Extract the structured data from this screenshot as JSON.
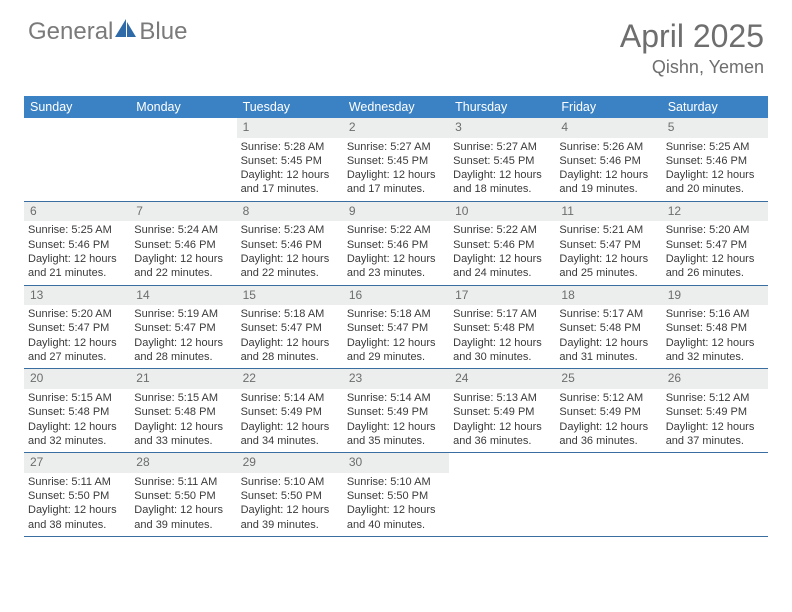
{
  "logo": {
    "textLeft": "General",
    "textRight": "Blue"
  },
  "title": {
    "month": "April 2025",
    "location": "Qishn, Yemen"
  },
  "colors": {
    "header_bg": "#3b82c4",
    "header_text": "#ffffff",
    "daynum_bg": "#eceded",
    "daynum_text": "#6d6d6d",
    "body_text": "#3a3a3a",
    "row_border": "#3b6ea0",
    "logo_text": "#7a7a7a",
    "logo_sail": "#2f6aa8",
    "title_text": "#6e6e6e"
  },
  "dow": [
    "Sunday",
    "Monday",
    "Tuesday",
    "Wednesday",
    "Thursday",
    "Friday",
    "Saturday"
  ],
  "weeks": [
    [
      null,
      null,
      {
        "n": "1",
        "sr": "5:28 AM",
        "ss": "5:45 PM",
        "dl": "12 hours and 17 minutes."
      },
      {
        "n": "2",
        "sr": "5:27 AM",
        "ss": "5:45 PM",
        "dl": "12 hours and 17 minutes."
      },
      {
        "n": "3",
        "sr": "5:27 AM",
        "ss": "5:45 PM",
        "dl": "12 hours and 18 minutes."
      },
      {
        "n": "4",
        "sr": "5:26 AM",
        "ss": "5:46 PM",
        "dl": "12 hours and 19 minutes."
      },
      {
        "n": "5",
        "sr": "5:25 AM",
        "ss": "5:46 PM",
        "dl": "12 hours and 20 minutes."
      }
    ],
    [
      {
        "n": "6",
        "sr": "5:25 AM",
        "ss": "5:46 PM",
        "dl": "12 hours and 21 minutes."
      },
      {
        "n": "7",
        "sr": "5:24 AM",
        "ss": "5:46 PM",
        "dl": "12 hours and 22 minutes."
      },
      {
        "n": "8",
        "sr": "5:23 AM",
        "ss": "5:46 PM",
        "dl": "12 hours and 22 minutes."
      },
      {
        "n": "9",
        "sr": "5:22 AM",
        "ss": "5:46 PM",
        "dl": "12 hours and 23 minutes."
      },
      {
        "n": "10",
        "sr": "5:22 AM",
        "ss": "5:46 PM",
        "dl": "12 hours and 24 minutes."
      },
      {
        "n": "11",
        "sr": "5:21 AM",
        "ss": "5:47 PM",
        "dl": "12 hours and 25 minutes."
      },
      {
        "n": "12",
        "sr": "5:20 AM",
        "ss": "5:47 PM",
        "dl": "12 hours and 26 minutes."
      }
    ],
    [
      {
        "n": "13",
        "sr": "5:20 AM",
        "ss": "5:47 PM",
        "dl": "12 hours and 27 minutes."
      },
      {
        "n": "14",
        "sr": "5:19 AM",
        "ss": "5:47 PM",
        "dl": "12 hours and 28 minutes."
      },
      {
        "n": "15",
        "sr": "5:18 AM",
        "ss": "5:47 PM",
        "dl": "12 hours and 28 minutes."
      },
      {
        "n": "16",
        "sr": "5:18 AM",
        "ss": "5:47 PM",
        "dl": "12 hours and 29 minutes."
      },
      {
        "n": "17",
        "sr": "5:17 AM",
        "ss": "5:48 PM",
        "dl": "12 hours and 30 minutes."
      },
      {
        "n": "18",
        "sr": "5:17 AM",
        "ss": "5:48 PM",
        "dl": "12 hours and 31 minutes."
      },
      {
        "n": "19",
        "sr": "5:16 AM",
        "ss": "5:48 PM",
        "dl": "12 hours and 32 minutes."
      }
    ],
    [
      {
        "n": "20",
        "sr": "5:15 AM",
        "ss": "5:48 PM",
        "dl": "12 hours and 32 minutes."
      },
      {
        "n": "21",
        "sr": "5:15 AM",
        "ss": "5:48 PM",
        "dl": "12 hours and 33 minutes."
      },
      {
        "n": "22",
        "sr": "5:14 AM",
        "ss": "5:49 PM",
        "dl": "12 hours and 34 minutes."
      },
      {
        "n": "23",
        "sr": "5:14 AM",
        "ss": "5:49 PM",
        "dl": "12 hours and 35 minutes."
      },
      {
        "n": "24",
        "sr": "5:13 AM",
        "ss": "5:49 PM",
        "dl": "12 hours and 36 minutes."
      },
      {
        "n": "25",
        "sr": "5:12 AM",
        "ss": "5:49 PM",
        "dl": "12 hours and 36 minutes."
      },
      {
        "n": "26",
        "sr": "5:12 AM",
        "ss": "5:49 PM",
        "dl": "12 hours and 37 minutes."
      }
    ],
    [
      {
        "n": "27",
        "sr": "5:11 AM",
        "ss": "5:50 PM",
        "dl": "12 hours and 38 minutes."
      },
      {
        "n": "28",
        "sr": "5:11 AM",
        "ss": "5:50 PM",
        "dl": "12 hours and 39 minutes."
      },
      {
        "n": "29",
        "sr": "5:10 AM",
        "ss": "5:50 PM",
        "dl": "12 hours and 39 minutes."
      },
      {
        "n": "30",
        "sr": "5:10 AM",
        "ss": "5:50 PM",
        "dl": "12 hours and 40 minutes."
      },
      null,
      null,
      null
    ]
  ],
  "labels": {
    "sunrise": "Sunrise: ",
    "sunset": "Sunset: ",
    "daylight": "Daylight: "
  }
}
